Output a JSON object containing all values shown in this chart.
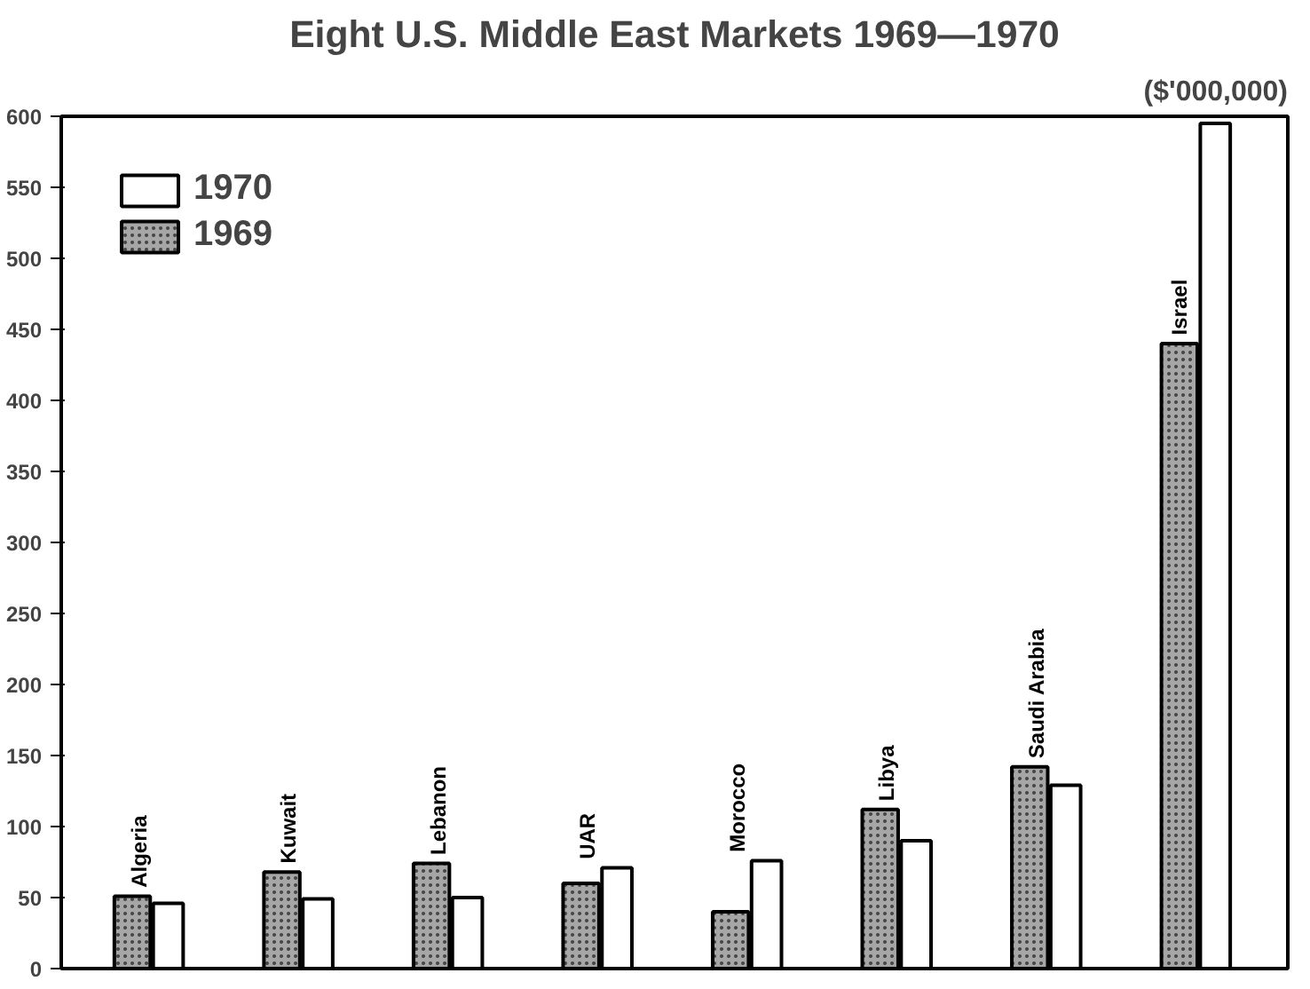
{
  "chart_data": {
    "type": "bar",
    "title": "Eight U.S. Middle East Markets 1969—1970",
    "subtitle": "($'000,000)",
    "categories": [
      "Algeria",
      "Kuwait",
      "Lebanon",
      "UAR",
      "Morocco",
      "Libya",
      "Saudi Arabia",
      "Israel"
    ],
    "series": [
      {
        "name": "1970",
        "color": "#ffffff",
        "values": [
          46,
          49,
          50,
          71,
          76,
          90,
          129,
          595
        ]
      },
      {
        "name": "1969",
        "color": "#a6a6a6",
        "values": [
          51,
          68,
          74,
          60,
          40,
          112,
          142,
          440
        ]
      }
    ],
    "ylim": [
      0,
      600
    ],
    "yticks": [
      0,
      50,
      100,
      150,
      200,
      250,
      300,
      350,
      400,
      450,
      500,
      550,
      600
    ],
    "grid": false,
    "legend": "top left",
    "tick_labels": "y"
  }
}
